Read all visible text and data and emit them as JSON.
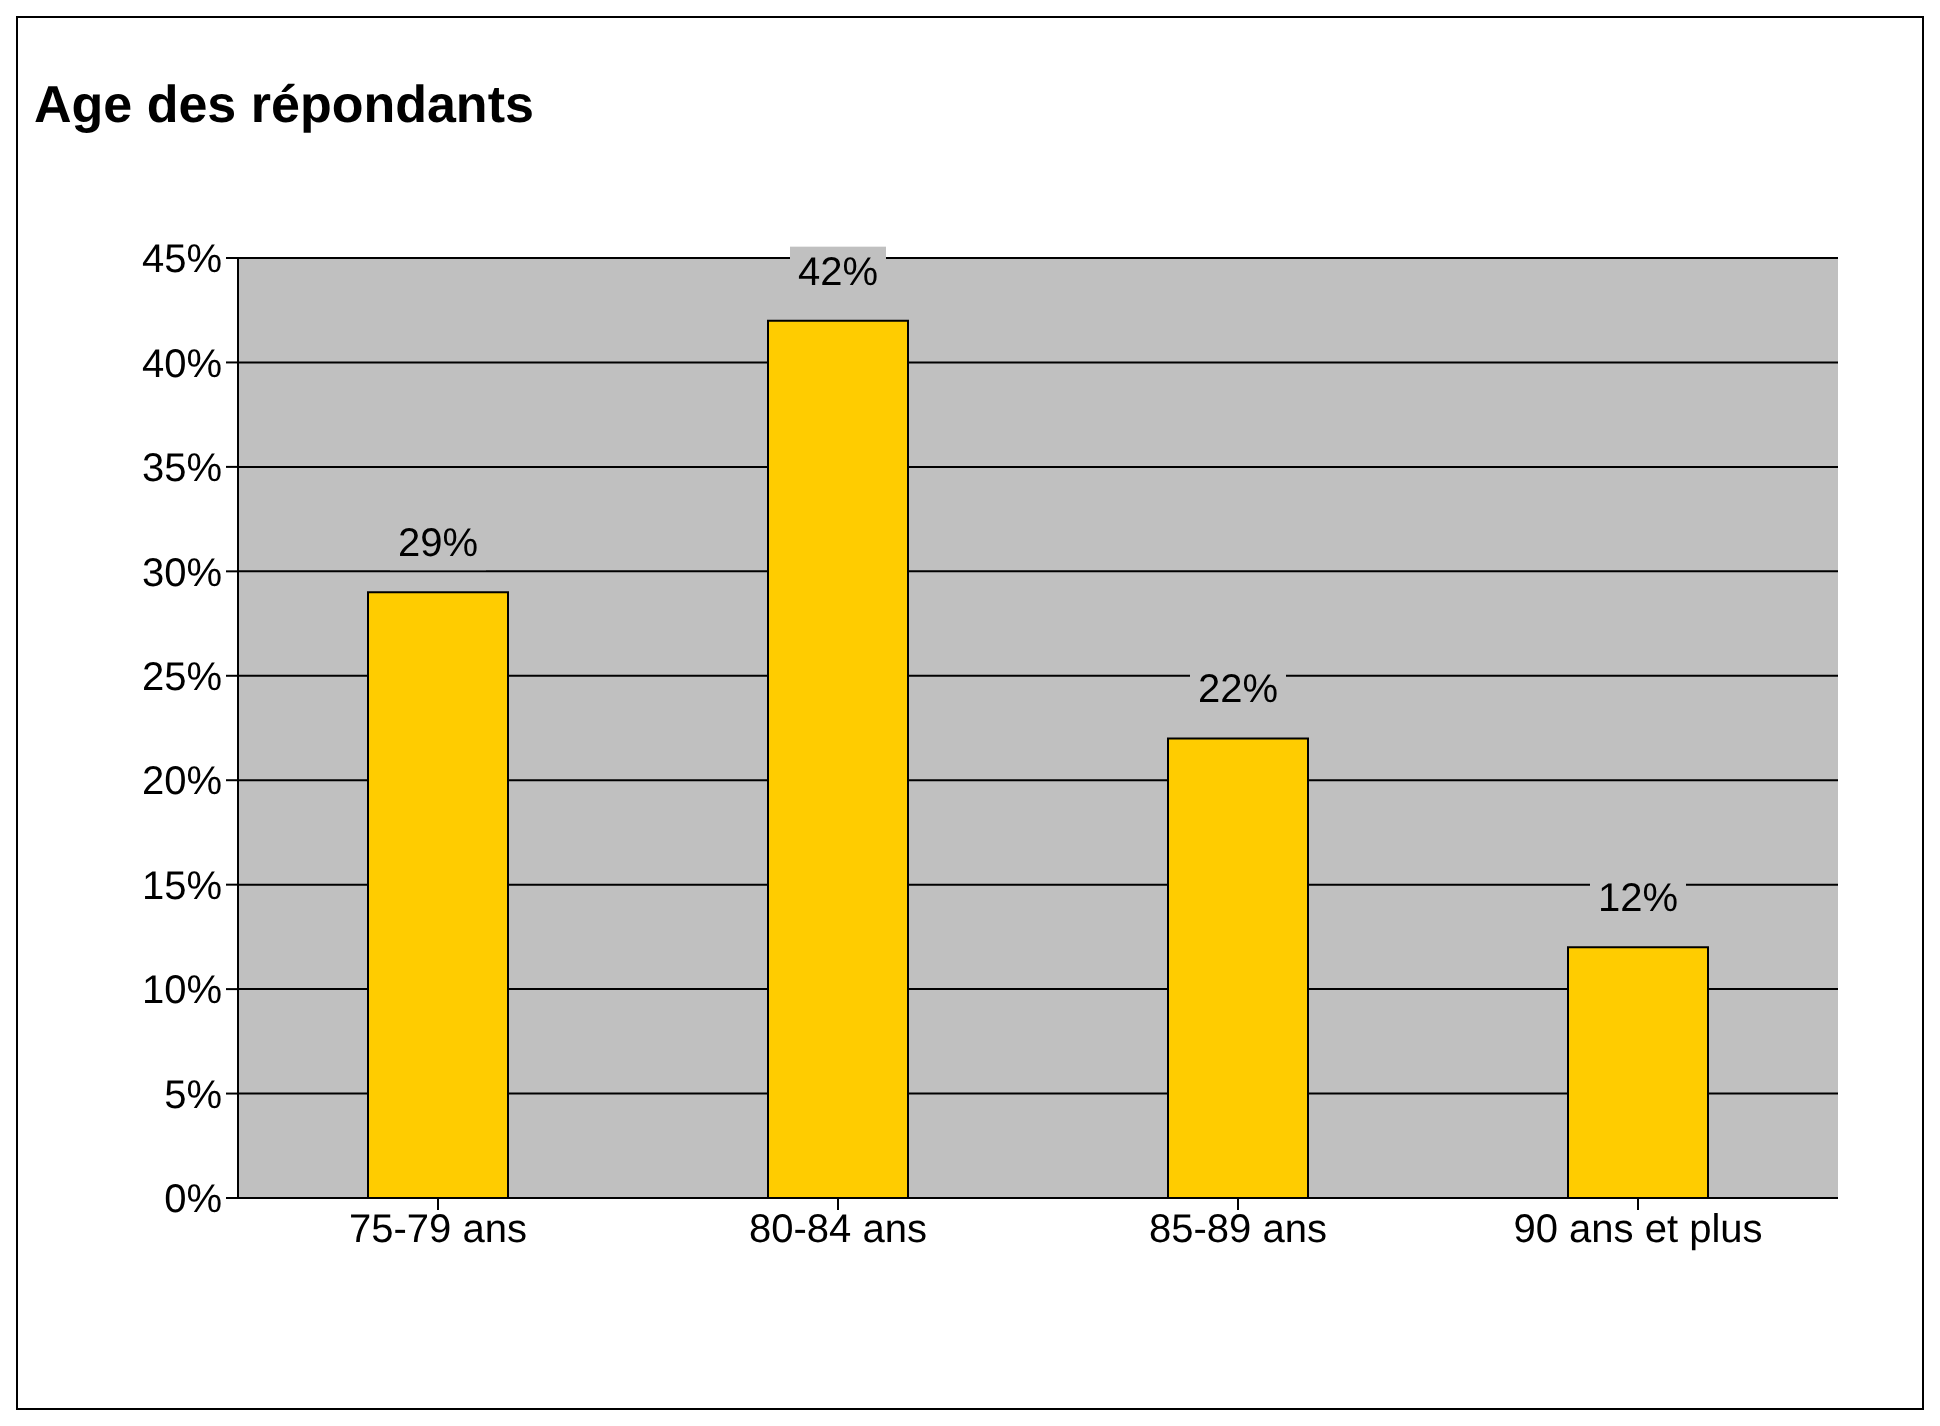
{
  "chart_data": {
    "type": "bar",
    "title": "Age des répondants",
    "categories": [
      "75-79 ans",
      "80-84 ans",
      "85-89 ans",
      "90 ans et plus"
    ],
    "values": [
      29,
      42,
      22,
      12
    ],
    "color": "#ffcc00",
    "value_labels": [
      "29%",
      "42%",
      "22%",
      "12%"
    ],
    "ylim": [
      0,
      45
    ],
    "yticks": [
      {
        "value": 0,
        "label": "0%"
      },
      {
        "value": 5,
        "label": "5%"
      },
      {
        "value": 10,
        "label": "10%"
      },
      {
        "value": 15,
        "label": "15%"
      },
      {
        "value": 20,
        "label": "20%"
      },
      {
        "value": 25,
        "label": "25%"
      },
      {
        "value": 30,
        "label": "30%"
      },
      {
        "value": 35,
        "label": "35%"
      },
      {
        "value": 40,
        "label": "40%"
      },
      {
        "value": 45,
        "label": "45%"
      }
    ],
    "grid": "y"
  }
}
